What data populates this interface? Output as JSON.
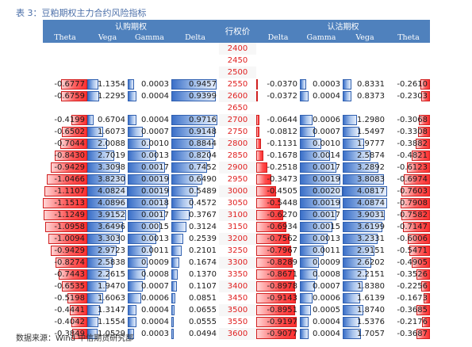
{
  "caption": "表 3：豆粕期权主力合约风险指标",
  "source": "数据来源：Wind  中信期货研究部",
  "header": {
    "call_group": "认购期权",
    "put_group": "认沽期权",
    "strike": "行权价",
    "call_cols": [
      "Theta",
      "Vega",
      "Gamma",
      "Delta"
    ],
    "put_cols": [
      "Delta",
      "Gamma",
      "Vega",
      "Theta"
    ]
  },
  "rows": [
    {
      "strike": "2400",
      "call": null,
      "put": null
    },
    {
      "strike": "2450",
      "call": null,
      "put": null
    },
    {
      "strike": "2500",
      "call": null,
      "put": null
    },
    {
      "strike": "2550",
      "call": [
        "-0.6777",
        "1.1354",
        "0.0003",
        "0.9457"
      ],
      "put": [
        "-0.0370",
        "0.0003",
        "0.8331",
        "-0.2610"
      ]
    },
    {
      "strike": "2600",
      "call": [
        "-0.6759",
        "1.2295",
        "0.0004",
        "0.9399"
      ],
      "put": [
        "-0.0372",
        "0.0004",
        "0.8373",
        "-0.2303"
      ]
    },
    {
      "strike": "2650",
      "call": null,
      "put": null
    },
    {
      "strike": "2700",
      "call": [
        "-0.4199",
        "0.6704",
        "0.0004",
        "0.9716"
      ],
      "put": [
        "-0.0644",
        "0.0006",
        "1.2980",
        "-0.3068"
      ]
    },
    {
      "strike": "2750",
      "call": [
        "-0.6502",
        "1.6073",
        "0.0007",
        "0.9148"
      ],
      "put": [
        "-0.0812",
        "0.0007",
        "1.5497",
        "-0.3308"
      ]
    },
    {
      "strike": "2800",
      "call": [
        "-0.7044",
        "2.0088",
        "0.0010",
        "0.8844"
      ],
      "put": [
        "-0.1131",
        "0.0010",
        "1.9777",
        "-0.3882"
      ]
    },
    {
      "strike": "2850",
      "call": [
        "-0.8430",
        "2.7019",
        "0.0013",
        "0.8204"
      ],
      "put": [
        "-0.1678",
        "0.0014",
        "2.5874",
        "-0.4821"
      ]
    },
    {
      "strike": "2900",
      "call": [
        "-0.9429",
        "3.3098",
        "0.0017",
        "0.7452"
      ],
      "put": [
        "-0.2518",
        "0.0017",
        "3.2892",
        "-0.6123"
      ]
    },
    {
      "strike": "2950",
      "call": [
        "-1.0466",
        "3.8230",
        "0.0019",
        "0.6490"
      ],
      "put": [
        "-0.3473",
        "0.0019",
        "3.8083",
        "-0.6974"
      ]
    },
    {
      "strike": "3000",
      "call": [
        "-1.1107",
        "4.0824",
        "0.0019",
        "0.5489"
      ],
      "put": [
        "-0.4505",
        "0.0020",
        "4.0817",
        "-0.7603"
      ]
    },
    {
      "strike": "3050",
      "call": [
        "-1.1513",
        "4.0896",
        "0.0018",
        "0.4572"
      ],
      "put": [
        "-0.5448",
        "0.0019",
        "4.0874",
        "-0.7908"
      ]
    },
    {
      "strike": "3100",
      "call": [
        "-1.1249",
        "3.9152",
        "0.0017",
        "0.3767"
      ],
      "put": [
        "-0.6270",
        "0.0017",
        "3.9031",
        "-0.7582"
      ]
    },
    {
      "strike": "3150",
      "call": [
        "-1.0958",
        "3.6496",
        "0.0015",
        "0.3124"
      ],
      "put": [
        "-0.6934",
        "0.0015",
        "3.6199",
        "-0.7147"
      ]
    },
    {
      "strike": "3200",
      "call": [
        "-1.0094",
        "3.3030",
        "0.0013",
        "0.2539"
      ],
      "put": [
        "-0.7562",
        "0.0013",
        "3.2331",
        "-0.6006"
      ]
    },
    {
      "strike": "3250",
      "call": [
        "-0.9429",
        "2.9723",
        "0.0011",
        "0.2101"
      ],
      "put": [
        "-0.7967",
        "0.0011",
        "2.9151",
        "-0.5471"
      ]
    },
    {
      "strike": "3300",
      "call": [
        "-0.8274",
        "2.5838",
        "0.0009",
        "0.1674"
      ],
      "put": [
        "-0.8289",
        "0.0009",
        "2.6202",
        "-0.4905"
      ]
    },
    {
      "strike": "3350",
      "call": [
        "-0.7443",
        "2.2615",
        "0.0008",
        "0.1370"
      ],
      "put": [
        "-0.8671",
        "0.0008",
        "2.2151",
        "-0.3526"
      ]
    },
    {
      "strike": "3400",
      "call": [
        "-0.6535",
        "1.9470",
        "0.0007",
        "0.1107"
      ],
      "put": [
        "-0.8978",
        "0.0007",
        "1.8380",
        "-0.2256"
      ]
    },
    {
      "strike": "3450",
      "call": [
        "-0.5198",
        "1.6063",
        "0.0006",
        "0.0851"
      ],
      "put": [
        "-0.9143",
        "0.0006",
        "1.6139",
        "-0.1673"
      ]
    },
    {
      "strike": "3500",
      "call": [
        "-0.4441",
        "1.3147",
        "0.0004",
        "0.0655"
      ],
      "put": [
        "-0.8951",
        "0.0005",
        "1.8740",
        "-0.3685"
      ]
    },
    {
      "strike": "3550",
      "call": [
        "-0.4042",
        "1.1554",
        "0.0004",
        "0.0555"
      ],
      "put": [
        "-0.9197",
        "0.0004",
        "1.5376",
        "-0.2176"
      ]
    },
    {
      "strike": "3600",
      "call": [
        "-0.3849",
        "1.0529",
        "0.0003",
        "0.0494"
      ],
      "put": [
        "-0.9077",
        "0.0004",
        "1.7057",
        "-0.3687"
      ]
    }
  ],
  "bar_scale": {
    "theta_max": 1.1513,
    "vega_max": 4.0896,
    "gamma_max": 0.002,
    "delta_max": 1.0
  },
  "colors": {
    "header_bg": "#4f81bd",
    "strike_text": "#e02020",
    "negative_bar": "#ff4040",
    "positive_bar": "#4f81bd"
  }
}
